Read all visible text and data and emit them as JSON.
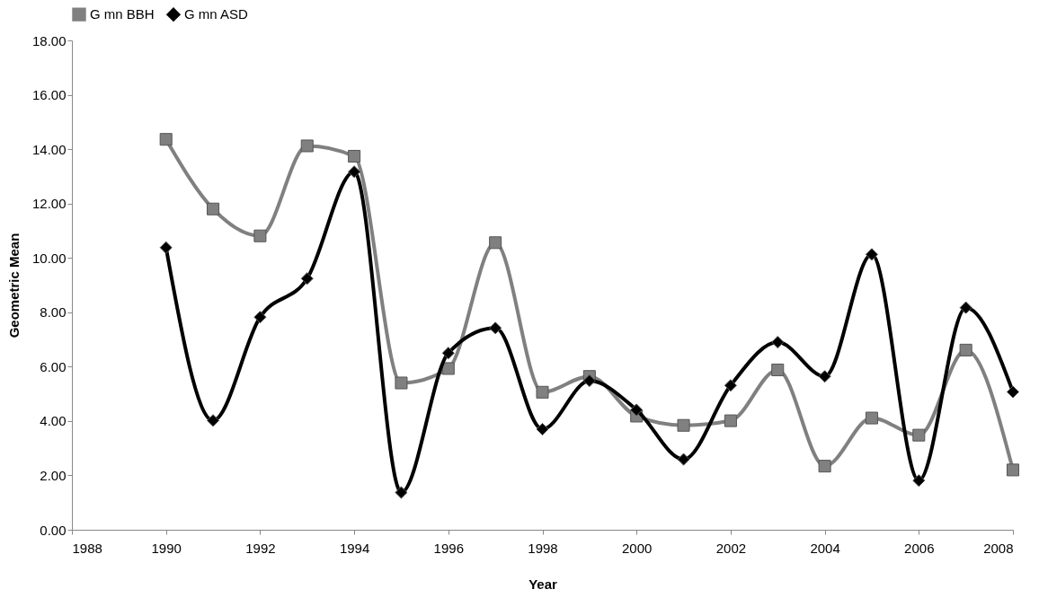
{
  "chart_data": {
    "type": "line",
    "xlabel": "Year",
    "ylabel": "Geometric Mean",
    "x": [
      1990,
      1991,
      1992,
      1993,
      1994,
      1995,
      1996,
      1997,
      1998,
      1999,
      2000,
      2001,
      2002,
      2003,
      2004,
      2005,
      2006,
      2007,
      2008
    ],
    "series": [
      {
        "name": "G mn BBH",
        "color": "#808080",
        "marker": "square",
        "values": [
          14.36,
          11.8,
          10.81,
          14.12,
          13.74,
          5.4,
          5.93,
          10.56,
          5.06,
          5.64,
          4.18,
          3.84,
          4.01,
          5.88,
          2.34,
          4.11,
          3.48,
          6.61,
          2.2
        ]
      },
      {
        "name": "G mn ASD",
        "color": "#000000",
        "marker": "diamond",
        "values": [
          10.38,
          4.02,
          7.82,
          9.24,
          13.17,
          1.37,
          6.5,
          7.42,
          3.7,
          5.48,
          4.41,
          2.59,
          5.31,
          6.9,
          5.64,
          10.13,
          1.81,
          8.17,
          5.07
        ]
      }
    ],
    "xlim": [
      1988,
      2008
    ],
    "xticks": [
      1988,
      1990,
      1992,
      1994,
      1996,
      1998,
      2000,
      2002,
      2004,
      2006,
      2008
    ],
    "ylim": [
      0,
      18
    ],
    "yticks": [
      {
        "value": 0,
        "label": "0.00"
      },
      {
        "value": 2,
        "label": "2.00"
      },
      {
        "value": 4,
        "label": "4.00"
      },
      {
        "value": 6,
        "label": "6.00"
      },
      {
        "value": 8,
        "label": "8.00"
      },
      {
        "value": 10,
        "label": "10.00"
      },
      {
        "value": 12,
        "label": "12.00"
      },
      {
        "value": 14,
        "label": "14.00"
      },
      {
        "value": 16,
        "label": "16.00"
      },
      {
        "value": 18,
        "label": "18.00"
      }
    ],
    "grid": false,
    "legend": "top",
    "line_style": "solid"
  }
}
